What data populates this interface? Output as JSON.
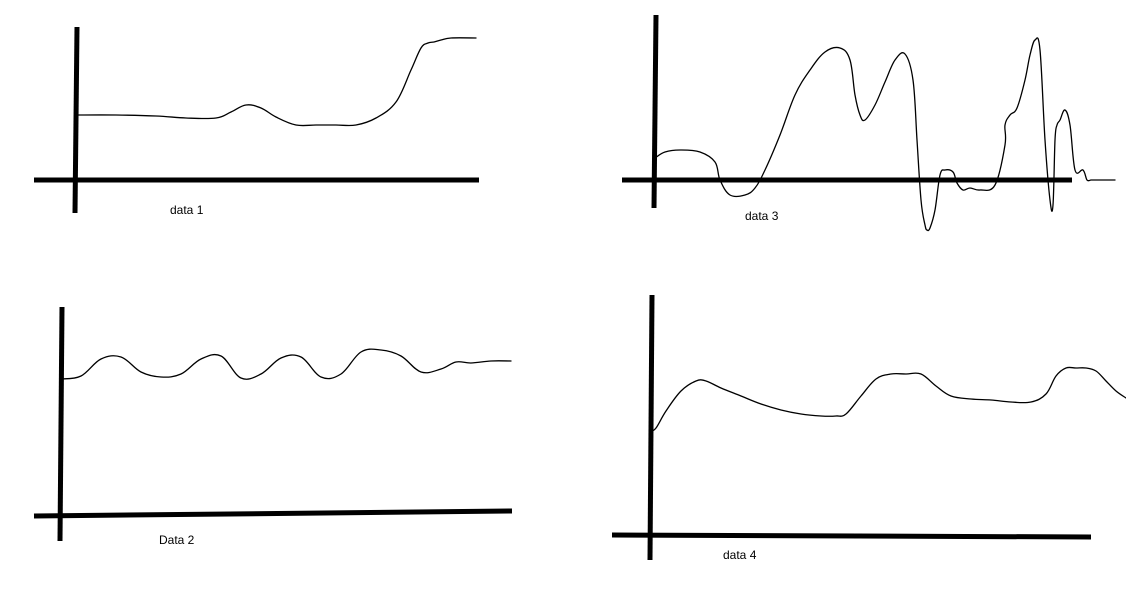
{
  "chart_data": [
    {
      "type": "line",
      "title": "",
      "xlabel": "data 1",
      "ylabel": "",
      "xlim": [
        0,
        400
      ],
      "ylim": [
        0,
        140
      ],
      "grid": false,
      "legend": "none",
      "series": [
        {
          "x": [
            0,
            40,
            80,
            110,
            140,
            155,
            170,
            185,
            200,
            220,
            240,
            260,
            280,
            300,
            320,
            335,
            345,
            352,
            358,
            365,
            375,
            400
          ],
          "y": [
            65,
            65,
            64,
            62,
            62,
            68,
            75,
            72,
            63,
            55,
            55,
            55,
            55,
            62,
            78,
            110,
            132,
            137,
            138,
            140,
            142,
            142
          ]
        }
      ]
    },
    {
      "type": "line",
      "title": "",
      "xlabel": "Data 2",
      "ylabel": "",
      "xlim": [
        0,
        450
      ],
      "ylim": [
        0,
        160
      ],
      "grid": false,
      "legend": "none",
      "series": [
        {
          "x": [
            0,
            20,
            40,
            60,
            80,
            100,
            120,
            140,
            160,
            180,
            200,
            220,
            240,
            260,
            280,
            300,
            320,
            340,
            360,
            380,
            395,
            410,
            430,
            450
          ],
          "y": [
            135,
            138,
            155,
            157,
            142,
            137,
            140,
            155,
            158,
            136,
            140,
            156,
            157,
            137,
            140,
            162,
            164,
            158,
            142,
            145,
            152,
            151,
            153,
            153
          ]
        }
      ]
    },
    {
      "type": "line",
      "title": "",
      "xlabel": "data 3",
      "ylabel": "",
      "xlim": [
        0,
        460
      ],
      "ylim": [
        -55,
        140
      ],
      "grid": false,
      "legend": "none",
      "series": [
        {
          "x": [
            0,
            10,
            25,
            45,
            60,
            65,
            75,
            90,
            100,
            110,
            125,
            140,
            155,
            170,
            185,
            195,
            200,
            205,
            210,
            220,
            230,
            240,
            250,
            258,
            262,
            266,
            270,
            272,
            275,
            280,
            285,
            290,
            298,
            302,
            308,
            315,
            325,
            340,
            350,
            350,
            355,
            362,
            370,
            375,
            380,
            385,
            390,
            395,
            398,
            400,
            402,
            405,
            410,
            415,
            420,
            428,
            432,
            436,
            440,
            445,
            448,
            452,
            456,
            460
          ],
          "y": [
            22,
            28,
            30,
            28,
            18,
            0,
            -15,
            -15,
            -8,
            10,
            45,
            85,
            110,
            128,
            132,
            120,
            85,
            65,
            60,
            75,
            98,
            120,
            126,
            100,
            40,
            -20,
            -45,
            -50,
            -48,
            -30,
            5,
            10,
            8,
            -3,
            -10,
            -8,
            -10,
            -5,
            35,
            55,
            65,
            72,
            100,
            125,
            140,
            130,
            40,
            -20,
            -25,
            40,
            55,
            60,
            70,
            55,
            10,
            10,
            0,
            0,
            0,
            0,
            0,
            0,
            0,
            0
          ]
        }
      ]
    },
    {
      "type": "line",
      "title": "",
      "xlabel": "data 4",
      "ylabel": "",
      "xlim": [
        0,
        475
      ],
      "ylim": [
        0,
        175
      ],
      "grid": false,
      "legend": "none",
      "series": [
        {
          "x": [
            0,
            5,
            15,
            30,
            45,
            55,
            70,
            90,
            110,
            130,
            150,
            170,
            185,
            195,
            210,
            225,
            240,
            255,
            270,
            285,
            300,
            320,
            340,
            360,
            380,
            395,
            405,
            415,
            425,
            435,
            445,
            455,
            465,
            475
          ],
          "y": [
            105,
            108,
            125,
            145,
            155,
            155,
            148,
            140,
            132,
            126,
            122,
            120,
            120,
            122,
            140,
            157,
            162,
            162,
            162,
            150,
            140,
            137,
            136,
            134,
            134,
            142,
            160,
            168,
            168,
            168,
            165,
            155,
            145,
            138
          ]
        }
      ]
    }
  ]
}
